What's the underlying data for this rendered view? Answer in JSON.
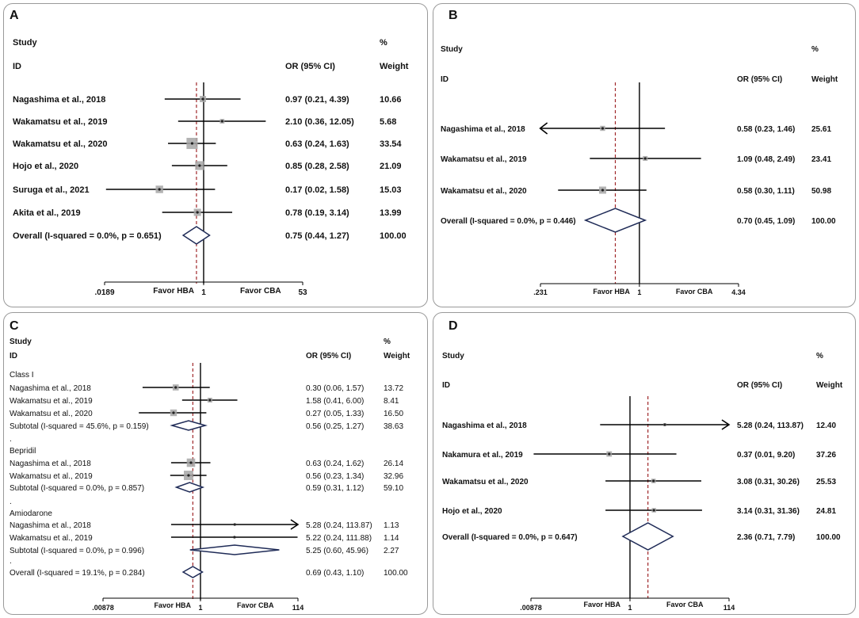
{
  "chart_data": [
    {
      "panel_label": "A",
      "type": "forest",
      "headers": {
        "study": "Study",
        "id": "ID",
        "or": "OR (95% CI)",
        "pct": "%",
        "weight": "Weight"
      },
      "scale": "log",
      "xlim": [
        0.0189,
        53
      ],
      "ticks": [
        {
          "v": 0.0189,
          "label": ".0189"
        },
        {
          "v": 1,
          "label": "1"
        },
        {
          "v": 53,
          "label": "53"
        }
      ],
      "favor_left": "Favor HBA",
      "favor_right": "Favor CBA",
      "overall_line": 0.75,
      "rows": [
        {
          "kind": "study",
          "label": "Nagashima et al., 2018",
          "or": 0.97,
          "lo": 0.21,
          "hi": 4.39,
          "ci_text": "0.97 (0.21, 4.39)",
          "weight": "10.66",
          "w": 10.66
        },
        {
          "kind": "study",
          "label": "Wakamatsu et al., 2019",
          "or": 2.1,
          "lo": 0.36,
          "hi": 12.05,
          "ci_text": "2.10 (0.36, 12.05)",
          "weight": "5.68",
          "w": 5.68
        },
        {
          "kind": "study",
          "label": "Wakamatsu et al., 2020",
          "or": 0.63,
          "lo": 0.24,
          "hi": 1.63,
          "ci_text": "0.63 (0.24, 1.63)",
          "weight": "33.54",
          "w": 33.54
        },
        {
          "kind": "study",
          "label": "Hojo et al., 2020",
          "or": 0.85,
          "lo": 0.28,
          "hi": 2.58,
          "ci_text": "0.85 (0.28, 2.58)",
          "weight": "21.09",
          "w": 21.09
        },
        {
          "kind": "study",
          "label": "Suruga et al., 2021",
          "or": 0.17,
          "lo": 0.02,
          "hi": 1.58,
          "ci_text": "0.17 (0.02, 1.58)",
          "weight": "15.03",
          "w": 15.03
        },
        {
          "kind": "study",
          "label": "Akita et al., 2019",
          "or": 0.78,
          "lo": 0.19,
          "hi": 3.14,
          "ci_text": "0.78 (0.19, 3.14)",
          "weight": "13.99",
          "w": 13.99
        },
        {
          "kind": "overall",
          "label": "Overall  (I-squared = 0.0%, p = 0.651)",
          "or": 0.75,
          "lo": 0.44,
          "hi": 1.27,
          "ci_text": "0.75 (0.44, 1.27)",
          "weight": "100.00"
        }
      ]
    },
    {
      "panel_label": "B",
      "type": "forest",
      "headers": {
        "study": "Study",
        "id": "ID",
        "or": "OR (95% CI)",
        "pct": "%",
        "weight": "Weight"
      },
      "scale": "log",
      "xlim": [
        0.231,
        4.34
      ],
      "ticks": [
        {
          "v": 0.231,
          "label": ".231"
        },
        {
          "v": 1,
          "label": "1"
        },
        {
          "v": 4.34,
          "label": "4.34"
        }
      ],
      "favor_left": "Favor HBA",
      "favor_right": "Favor CBA",
      "overall_line": 0.7,
      "rows": [
        {
          "kind": "study",
          "label": "Nagashima et al., 2018",
          "or": 0.58,
          "lo": 0.23,
          "hi": 1.46,
          "ci_text": "0.58 (0.23, 1.46)",
          "weight": "25.61",
          "w": 25.61,
          "arrow_lo": true
        },
        {
          "kind": "study",
          "label": "Wakamatsu et al., 2019",
          "or": 1.09,
          "lo": 0.48,
          "hi": 2.49,
          "ci_text": "1.09 (0.48, 2.49)",
          "weight": "23.41",
          "w": 23.41
        },
        {
          "kind": "study",
          "label": "Wakamatsu et al., 2020",
          "or": 0.58,
          "lo": 0.3,
          "hi": 1.11,
          "ci_text": "0.58 (0.30, 1.11)",
          "weight": "50.98",
          "w": 50.98
        },
        {
          "kind": "overall",
          "label": "Overall  (I-squared = 0.0%, p = 0.446)",
          "or": 0.7,
          "lo": 0.45,
          "hi": 1.09,
          "ci_text": "0.70 (0.45, 1.09)",
          "weight": "100.00"
        }
      ]
    },
    {
      "panel_label": "C",
      "type": "forest",
      "headers": {
        "study": "Study",
        "id": "ID",
        "or": "OR (95% CI)",
        "pct": "%",
        "weight": "Weight"
      },
      "scale": "log",
      "xlim": [
        0.00878,
        114
      ],
      "ticks": [
        {
          "v": 0.00878,
          "label": ".00878"
        },
        {
          "v": 1,
          "label": "1"
        },
        {
          "v": 114,
          "label": "114"
        }
      ],
      "favor_left": "Favor HBA",
      "favor_right": "Favor CBA",
      "overall_line": 0.69,
      "rows": [
        {
          "kind": "group",
          "label": "Class I"
        },
        {
          "kind": "study",
          "label": "Nagashima et al., 2018",
          "or": 0.3,
          "lo": 0.06,
          "hi": 1.57,
          "ci_text": "0.30 (0.06, 1.57)",
          "weight": "13.72",
          "w": 13.72
        },
        {
          "kind": "study",
          "label": "Wakamatsu et al., 2019",
          "or": 1.58,
          "lo": 0.41,
          "hi": 6.0,
          "ci_text": "1.58 (0.41, 6.00)",
          "weight": "8.41",
          "w": 8.41
        },
        {
          "kind": "study",
          "label": "Wakamatsu et al., 2020",
          "or": 0.27,
          "lo": 0.05,
          "hi": 1.33,
          "ci_text": "0.27 (0.05, 1.33)",
          "weight": "16.50",
          "w": 16.5
        },
        {
          "kind": "subtotal",
          "label": "Subtotal  (I-squared = 45.6%, p = 0.159)",
          "or": 0.56,
          "lo": 0.25,
          "hi": 1.27,
          "ci_text": "0.56 (0.25, 1.27)",
          "weight": "38.63"
        },
        {
          "kind": "dot",
          "label": "."
        },
        {
          "kind": "group",
          "label": "Bepridil"
        },
        {
          "kind": "study",
          "label": "Nagashima et al., 2018",
          "or": 0.63,
          "lo": 0.24,
          "hi": 1.62,
          "ci_text": "0.63 (0.24, 1.62)",
          "weight": "26.14",
          "w": 26.14
        },
        {
          "kind": "study",
          "label": "Wakamatsu et al., 2019",
          "or": 0.56,
          "lo": 0.23,
          "hi": 1.34,
          "ci_text": "0.56 (0.23, 1.34)",
          "weight": "32.96",
          "w": 32.96
        },
        {
          "kind": "subtotal",
          "label": "Subtotal  (I-squared = 0.0%, p = 0.857)",
          "or": 0.59,
          "lo": 0.31,
          "hi": 1.12,
          "ci_text": "0.59 (0.31, 1.12)",
          "weight": "59.10"
        },
        {
          "kind": "dot",
          "label": "."
        },
        {
          "kind": "group",
          "label": "Amiodarone"
        },
        {
          "kind": "study",
          "label": "Nagashima et al., 2018",
          "or": 5.28,
          "lo": 0.24,
          "hi": 113.87,
          "ci_text": "5.28 (0.24, 113.87)",
          "weight": "1.13",
          "w": 1.13,
          "arrow_hi": true
        },
        {
          "kind": "study",
          "label": "Wakamatsu et al., 2019",
          "or": 5.22,
          "lo": 0.24,
          "hi": 111.88,
          "ci_text": "5.22 (0.24, 111.88)",
          "weight": "1.14",
          "w": 1.14
        },
        {
          "kind": "subtotal",
          "label": "Subtotal  (I-squared = 0.0%, p = 0.996)",
          "or": 5.25,
          "lo": 0.6,
          "hi": 45.96,
          "ci_text": "5.25 (0.60, 45.96)",
          "weight": "2.27"
        },
        {
          "kind": "dot",
          "label": "."
        },
        {
          "kind": "overall",
          "label": "Overall  (I-squared = 19.1%, p = 0.284)",
          "or": 0.69,
          "lo": 0.43,
          "hi": 1.1,
          "ci_text": "0.69 (0.43, 1.10)",
          "weight": "100.00"
        }
      ]
    },
    {
      "panel_label": "D",
      "type": "forest",
      "headers": {
        "study": "Study",
        "id": "ID",
        "or": "OR (95% CI)",
        "pct": "%",
        "weight": "Weight"
      },
      "scale": "log",
      "xlim": [
        0.00878,
        114
      ],
      "ticks": [
        {
          "v": 0.00878,
          "label": ".00878"
        },
        {
          "v": 1,
          "label": "1"
        },
        {
          "v": 114,
          "label": "114"
        }
      ],
      "favor_left": "Favor HBA",
      "favor_right": "Favor CBA",
      "overall_line": 2.36,
      "rows": [
        {
          "kind": "study",
          "label": "Nagashima et al., 2018",
          "or": 5.28,
          "lo": 0.24,
          "hi": 113.87,
          "ci_text": "5.28 (0.24, 113.87)",
          "weight": "12.40",
          "w": 12.4,
          "arrow_hi": true
        },
        {
          "kind": "study",
          "label": "Nakamura et al., 2019",
          "or": 0.37,
          "lo": 0.01,
          "hi": 9.2,
          "ci_text": "0.37 (0.01, 9.20)",
          "weight": "37.26",
          "w": 37.26
        },
        {
          "kind": "study",
          "label": "Wakamatsu et al., 2020",
          "or": 3.08,
          "lo": 0.31,
          "hi": 30.26,
          "ci_text": "3.08 (0.31, 30.26)",
          "weight": "25.53",
          "w": 25.53
        },
        {
          "kind": "study",
          "label": "Hojo et al., 2020",
          "or": 3.14,
          "lo": 0.31,
          "hi": 31.36,
          "ci_text": "3.14 (0.31, 31.36)",
          "weight": "24.81",
          "w": 24.81
        },
        {
          "kind": "overall",
          "label": "Overall  (I-squared = 0.0%, p = 0.647)",
          "or": 2.36,
          "lo": 0.71,
          "hi": 7.79,
          "ci_text": "2.36 (0.71, 7.79)",
          "weight": "100.00"
        }
      ]
    }
  ]
}
